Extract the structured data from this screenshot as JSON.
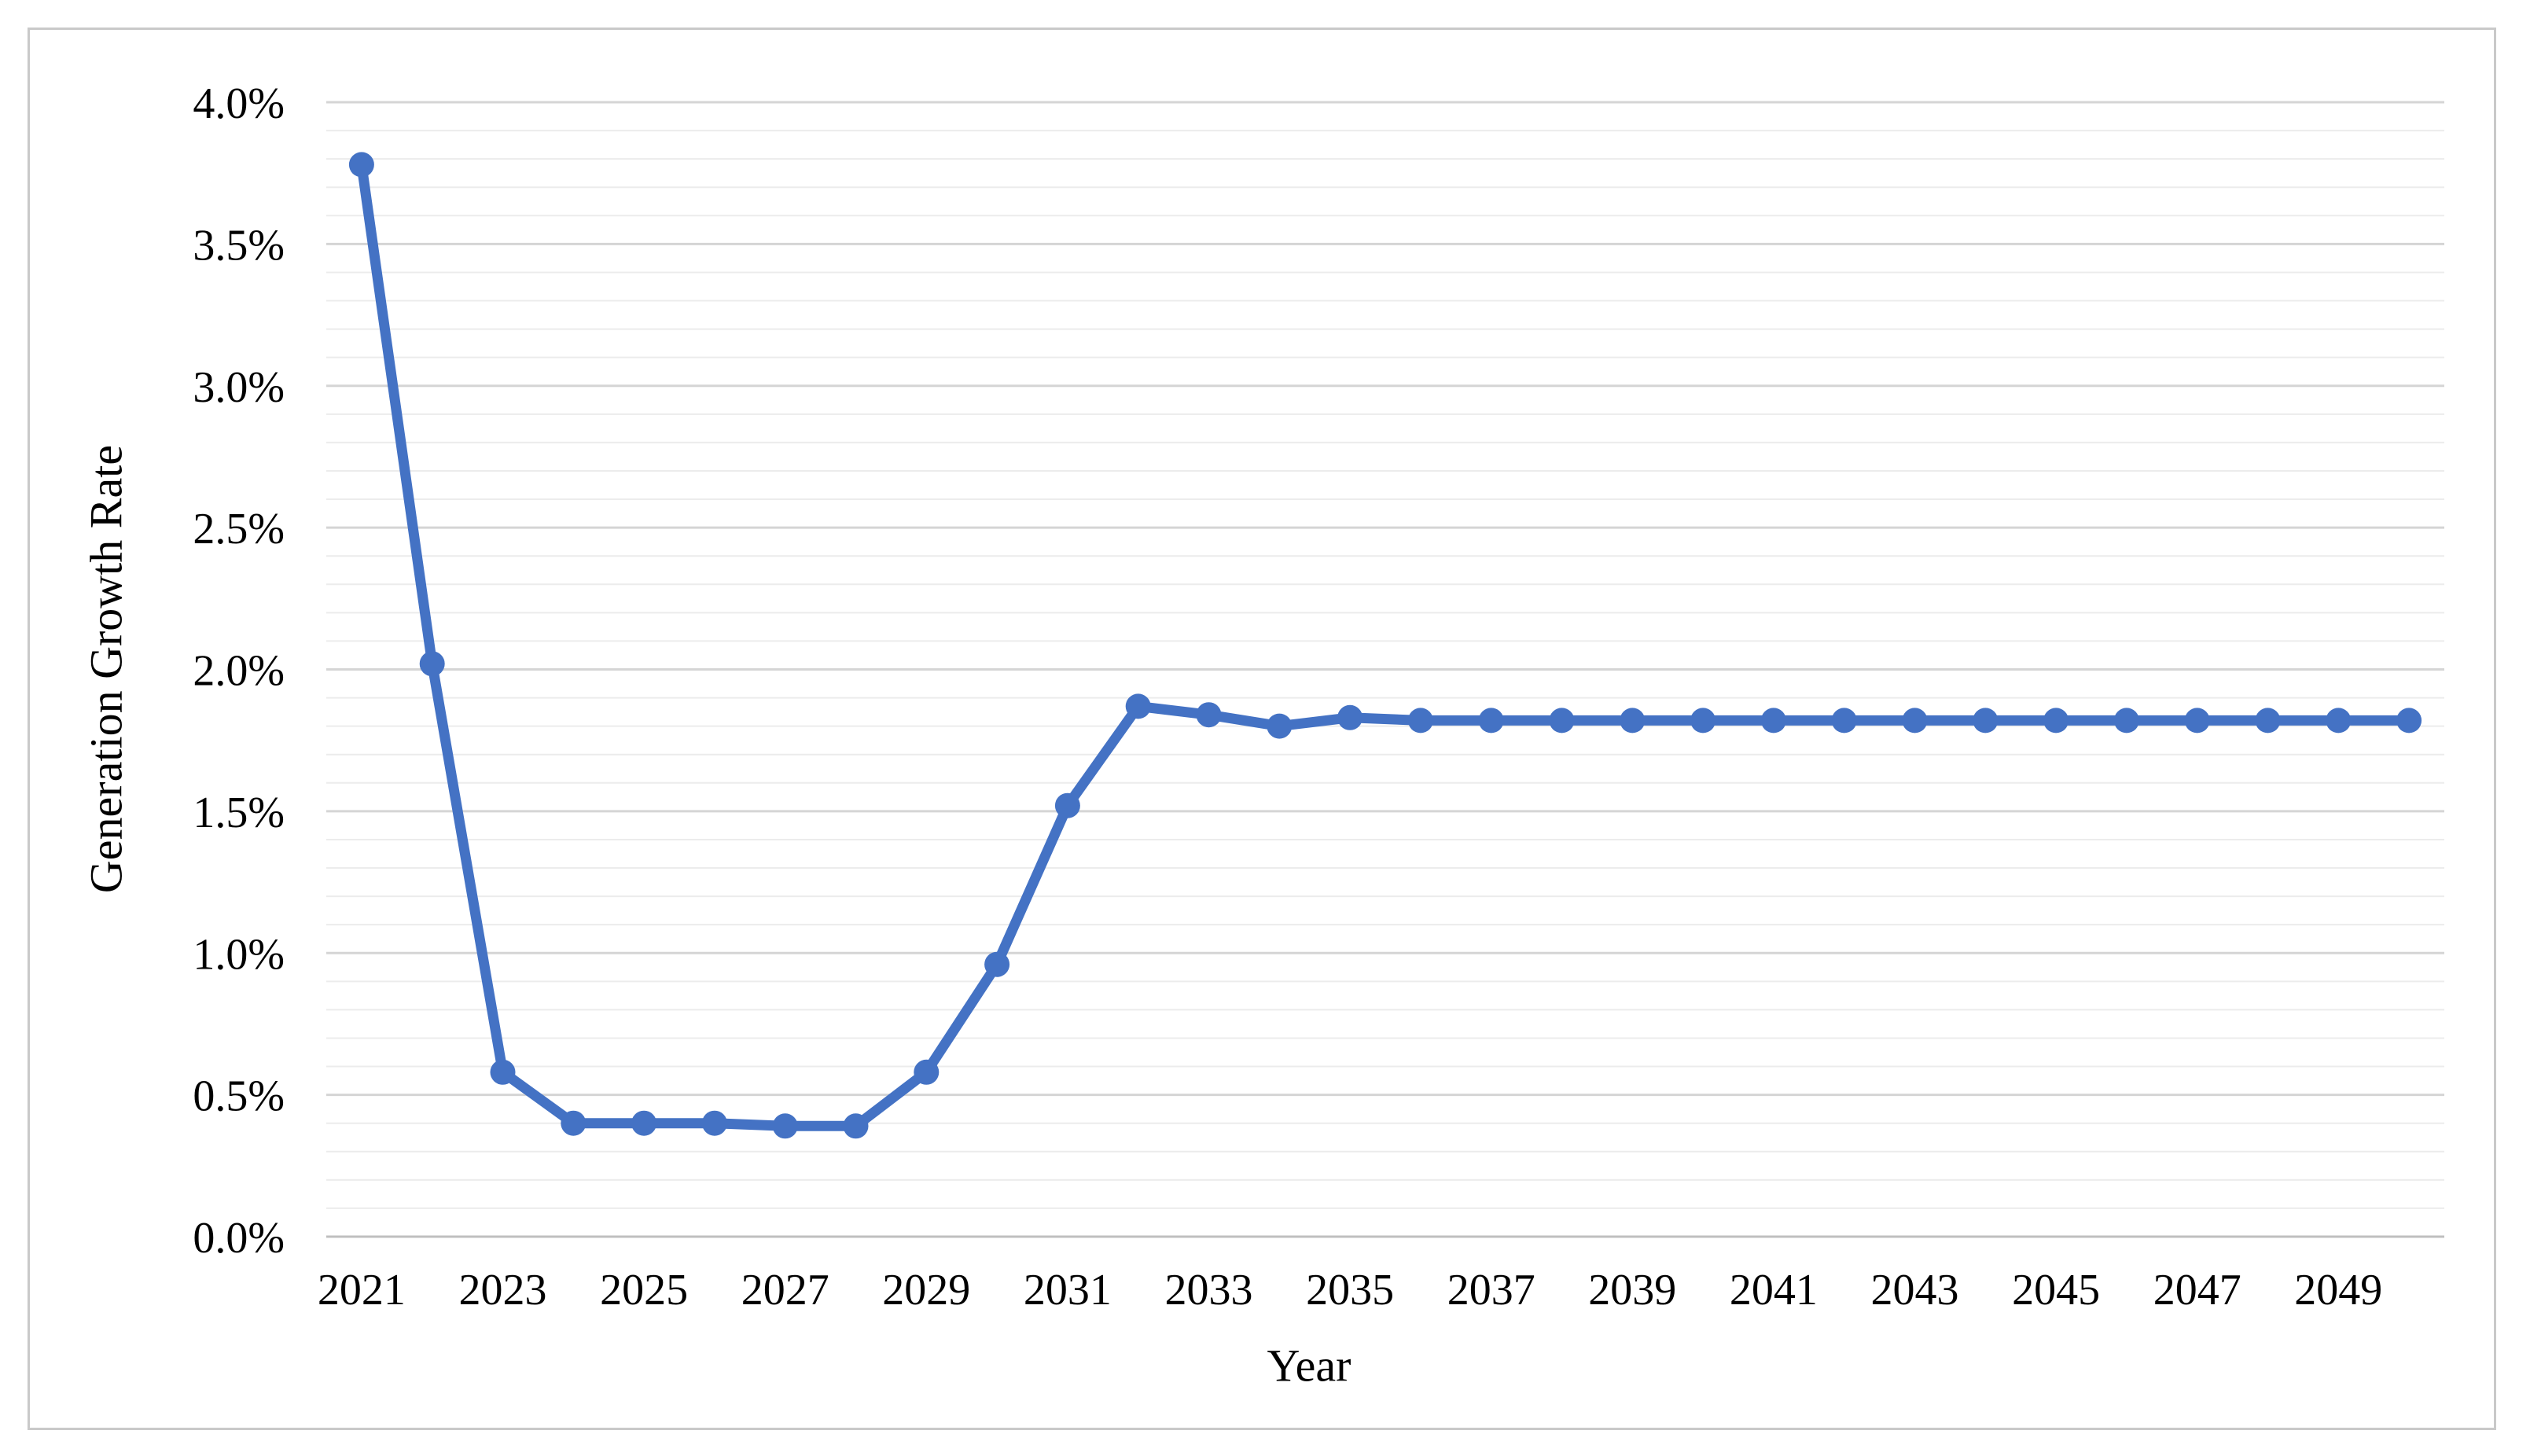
{
  "figure": {
    "background": "#ffffff",
    "border_color": "#c9c9c9"
  },
  "axes": {
    "y_title": "Generation Growth Rate",
    "x_title": "Year",
    "y_tick_labels": [
      "0.0%",
      "0.5%",
      "1.0%",
      "1.5%",
      "2.0%",
      "2.5%",
      "3.0%",
      "3.5%",
      "4.0%"
    ],
    "x_tick_labels": [
      "2021",
      "2023",
      "2025",
      "2027",
      "2029",
      "2031",
      "2033",
      "2035",
      "2037",
      "2039",
      "2041",
      "2043",
      "2045",
      "2047",
      "2049"
    ]
  },
  "chart_data": {
    "type": "line",
    "title": "",
    "xlabel": "Year",
    "ylabel": "Generation Growth Rate",
    "x": [
      2021,
      2022,
      2023,
      2024,
      2025,
      2026,
      2027,
      2028,
      2029,
      2030,
      2031,
      2032,
      2033,
      2034,
      2035,
      2036,
      2037,
      2038,
      2039,
      2040,
      2041,
      2042,
      2043,
      2044,
      2045,
      2046,
      2047,
      2048,
      2049,
      2050
    ],
    "values": [
      3.78,
      2.02,
      0.58,
      0.4,
      0.4,
      0.4,
      0.39,
      0.39,
      0.58,
      0.96,
      1.52,
      1.87,
      1.84,
      1.8,
      1.83,
      1.82,
      1.82,
      1.82,
      1.82,
      1.82,
      1.82,
      1.82,
      1.82,
      1.82,
      1.82,
      1.82,
      1.82,
      1.82,
      1.82,
      1.82
    ],
    "unit": "%",
    "ylim": [
      0.0,
      4.0
    ],
    "y_major_step": 0.5,
    "y_minor_step": 0.1,
    "x_label_step": 2,
    "grid": "minor-and-major-horizontal",
    "legend": "none",
    "marker": "circle",
    "colors": {
      "line": "#4472C4",
      "marker": "#4472C4",
      "major_gridline": "#d5d5d5",
      "minor_gridline": "#ececec",
      "axis_line": "#bfbfbf",
      "tick_text": "#000000"
    }
  }
}
